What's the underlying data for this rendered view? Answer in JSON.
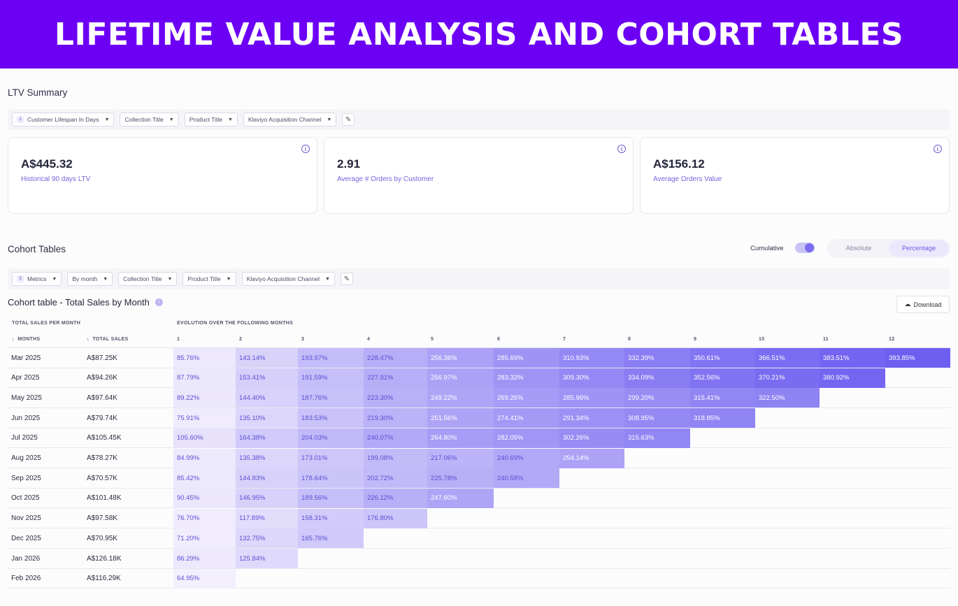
{
  "banner": {
    "title": "LIFETIME VALUE ANALYSIS AND COHORT TABLES"
  },
  "ltv": {
    "title": "LTV Summary",
    "filters": [
      {
        "badge": "1",
        "label": "Customer Lifespan In Days"
      },
      {
        "label": "Collection Title"
      },
      {
        "label": "Product Title"
      },
      {
        "label": "Klaviyo Acquisition Channel"
      }
    ],
    "cards": [
      {
        "value": "A$445.32",
        "label": "Historical 90 days LTV"
      },
      {
        "value": "2.91",
        "label": "Average # Orders by Customer"
      },
      {
        "value": "A$156.12",
        "label": "Average Orders Value"
      }
    ]
  },
  "cohort": {
    "title": "Cohort Tables",
    "cumulative_label": "Cumulative",
    "cumulative_on": true,
    "modes": [
      "Absolute",
      "Percentage"
    ],
    "active_mode": "Percentage",
    "filters": [
      {
        "badge": "3",
        "label": "Metrics"
      },
      {
        "label": "By month"
      },
      {
        "label": "Collection Title"
      },
      {
        "label": "Product Title"
      },
      {
        "label": "Klaviyo Acquisition Channel"
      }
    ],
    "table_title": "Cohort table - Total Sales by Month",
    "download_label": "Download",
    "group_headers": {
      "left": "TOTAL SALES PER MONTH",
      "right": "EVOLUTION OVER THE FOLLOWING MONTHS"
    },
    "col_months": "MONTHS",
    "col_sales": "TOTAL SALES",
    "periods": [
      "1",
      "2",
      "3",
      "4",
      "5",
      "6",
      "7",
      "8",
      "9",
      "10",
      "11",
      "12"
    ],
    "colors": {
      "accent": "#6c5ce7",
      "banner": "#6c00f5",
      "cell_text": "#5b4fd4",
      "cell_text_dark": "#ffffff"
    },
    "rows": [
      {
        "month": "Mar 2025",
        "sales": "A$87.25K",
        "values": [
          "85.76%",
          "143.14%",
          "193.97%",
          "228.47%",
          "256.36%",
          "285.69%",
          "310.93%",
          "332.39%",
          "350.61%",
          "366.51%",
          "383.51%",
          "393.85%"
        ]
      },
      {
        "month": "Apr 2025",
        "sales": "A$94.26K",
        "values": [
          "87.79%",
          "153.41%",
          "191.59%",
          "227.91%",
          "256.97%",
          "283.32%",
          "309.30%",
          "334.09%",
          "352.56%",
          "370.21%",
          "380.92%"
        ]
      },
      {
        "month": "May 2025",
        "sales": "A$97.64K",
        "values": [
          "89.22%",
          "144.40%",
          "187.76%",
          "223.30%",
          "249.22%",
          "269.26%",
          "285.96%",
          "299.20%",
          "315.41%",
          "322.50%"
        ]
      },
      {
        "month": "Jun 2025",
        "sales": "A$79.74K",
        "values": [
          "75.91%",
          "135.10%",
          "183.53%",
          "219.30%",
          "251.56%",
          "274.41%",
          "291.34%",
          "308.95%",
          "318.85%"
        ]
      },
      {
        "month": "Jul 2025",
        "sales": "A$105.45K",
        "values": [
          "105.60%",
          "164.38%",
          "204.03%",
          "240.07%",
          "264.80%",
          "282.05%",
          "302.26%",
          "315.63%"
        ]
      },
      {
        "month": "Aug 2025",
        "sales": "A$78.27K",
        "values": [
          "84.99%",
          "135.38%",
          "173.01%",
          "199.08%",
          "217.06%",
          "240.69%",
          "254.14%"
        ]
      },
      {
        "month": "Sep 2025",
        "sales": "A$70.57K",
        "values": [
          "85.42%",
          "144.83%",
          "178.64%",
          "202.72%",
          "225.78%",
          "240.58%"
        ]
      },
      {
        "month": "Oct 2025",
        "sales": "A$101.48K",
        "values": [
          "90.45%",
          "146.95%",
          "189.56%",
          "226.12%",
          "247.60%"
        ]
      },
      {
        "month": "Nov 2025",
        "sales": "A$97.58K",
        "values": [
          "76.70%",
          "117.89%",
          "158.31%",
          "176.80%"
        ]
      },
      {
        "month": "Dec 2025",
        "sales": "A$70.95K",
        "values": [
          "71.20%",
          "132.75%",
          "165.76%"
        ]
      },
      {
        "month": "Jan 2026",
        "sales": "A$126.18K",
        "values": [
          "86.29%",
          "125.84%"
        ]
      },
      {
        "month": "Feb 2026",
        "sales": "A$116.29K",
        "values": [
          "64.95%"
        ]
      }
    ]
  }
}
